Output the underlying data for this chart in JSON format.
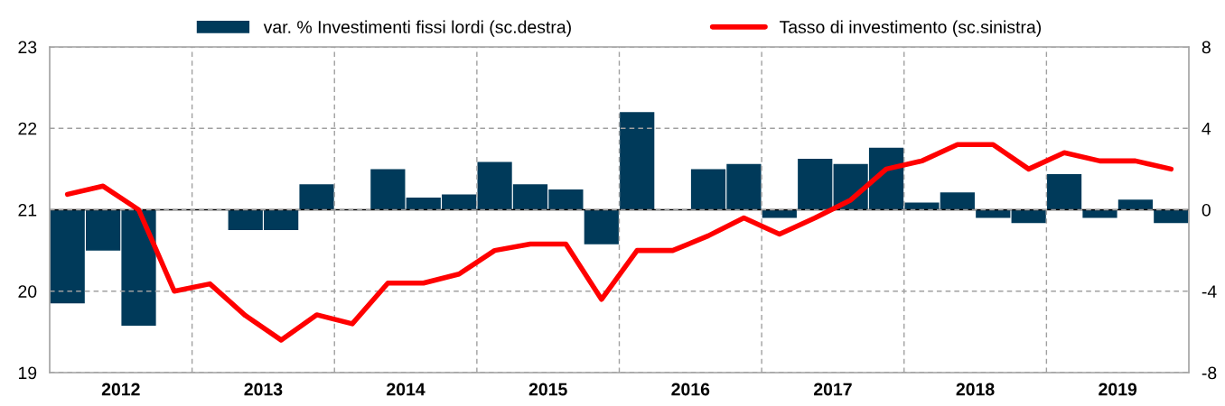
{
  "chart_data": {
    "type": "bar",
    "x": [
      2012.125,
      2012.375,
      2012.625,
      2012.875,
      2013.125,
      2013.375,
      2013.625,
      2013.875,
      2014.125,
      2014.375,
      2014.625,
      2014.875,
      2015.125,
      2015.375,
      2015.625,
      2015.875,
      2016.125,
      2016.375,
      2016.625,
      2016.875,
      2017.125,
      2017.375,
      2017.625,
      2017.875,
      2018.125,
      2018.375,
      2018.625,
      2018.875,
      2019.125,
      2019.375,
      2019.625,
      2019.875
    ],
    "series": [
      {
        "name": "var. % Investimenti fissi lordi (sc.destra)",
        "axis": "y2",
        "color": "#003a5a",
        "values": [
          -4.6,
          -2.0,
          -5.7,
          null,
          null,
          -1.0,
          -1.0,
          1.25,
          null,
          2.0,
          0.6,
          0.75,
          2.35,
          1.25,
          1.0,
          -1.7,
          4.8,
          null,
          2.0,
          2.25,
          -0.4,
          2.5,
          2.25,
          3.05,
          0.35,
          0.85,
          -0.4,
          -0.65,
          1.75,
          -0.4,
          0.5,
          -0.65
        ]
      },
      {
        "name": "Tasso di investimento (sc.sinistra)",
        "type": "line",
        "axis": "y",
        "color": "#ff0000",
        "values": [
          21.19,
          21.29,
          21.0,
          20.0,
          20.09,
          19.7,
          19.4,
          19.71,
          19.6,
          20.1,
          20.1,
          20.21,
          20.5,
          20.58,
          20.58,
          19.9,
          20.5,
          20.5,
          20.68,
          20.9,
          20.7,
          20.9,
          21.12,
          21.5,
          21.6,
          21.8,
          21.8,
          21.5,
          21.7,
          21.6,
          21.6,
          21.5
        ]
      }
    ],
    "xlim": [
      2012,
      2020
    ],
    "xticks": [
      {
        "value": 2012.5,
        "label": "2012"
      },
      {
        "value": 2013,
        "label": null
      },
      {
        "value": 2013.5,
        "label": "2013"
      },
      {
        "value": 2014,
        "label": null
      },
      {
        "value": 2014.5,
        "label": "2014"
      },
      {
        "value": 2015,
        "label": null
      },
      {
        "value": 2015.5,
        "label": "2015"
      },
      {
        "value": 2016,
        "label": null
      },
      {
        "value": 2016.5,
        "label": "2016"
      },
      {
        "value": 2017,
        "label": null
      },
      {
        "value": 2017.5,
        "label": "2017"
      },
      {
        "value": 2018,
        "label": null
      },
      {
        "value": 2018.5,
        "label": "2018"
      },
      {
        "value": 2019,
        "label": null
      },
      {
        "value": 2019.5,
        "label": "2019"
      }
    ],
    "ylim": [
      19,
      23
    ],
    "yticks": [
      19,
      20,
      21,
      22,
      23
    ],
    "y2lim": [
      -8,
      8
    ],
    "y2ticks": [
      -8,
      -4,
      0,
      4,
      8
    ],
    "ref_lines": [
      {
        "axis": "y2",
        "value": 0,
        "color": "#000000"
      }
    ],
    "grid": true,
    "legend": "top"
  }
}
